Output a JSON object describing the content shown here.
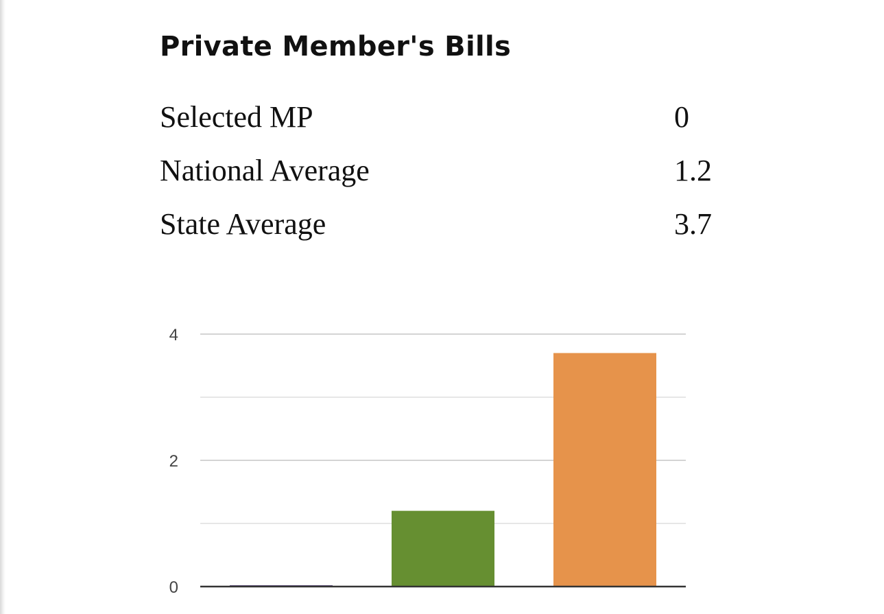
{
  "title": "Private Member's Bills",
  "stats": [
    {
      "label": "Selected MP",
      "value": "0"
    },
    {
      "label": "National Average",
      "value": "1.2"
    },
    {
      "label": "State Average",
      "value": "3.7"
    }
  ],
  "colors": {
    "selected_mp": "#6b5b8a",
    "national_average": "#668f31",
    "state_average": "#e6934b",
    "gridline": "#d4d4d4",
    "baseline": "#333333"
  },
  "chart_data": {
    "type": "bar",
    "categories": [
      "Selected MP",
      "National Average",
      "State Average"
    ],
    "values": [
      0,
      1.2,
      3.7
    ],
    "ylim": [
      0,
      4
    ],
    "yticks": [
      "0",
      "2",
      "4"
    ],
    "grid": true,
    "legend": "none",
    "title": "",
    "xlabel": "",
    "ylabel": ""
  }
}
